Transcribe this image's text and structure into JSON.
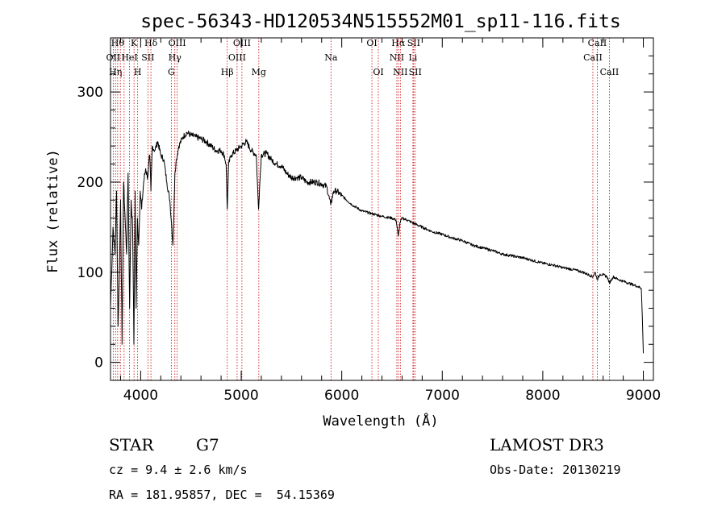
{
  "chart_data": {
    "type": "line",
    "title": "spec-56343-HD120534N515552M01_sp11-116.fits",
    "xlabel": "Wavelength (Å)",
    "ylabel": "Flux (relative)",
    "xlim": [
      3700,
      9100
    ],
    "ylim": [
      -20,
      360
    ],
    "x_ticks": [
      4000,
      5000,
      6000,
      7000,
      8000,
      9000
    ],
    "y_ticks": [
      0,
      100,
      200,
      300
    ],
    "series": [
      {
        "name": "spectrum",
        "x": [
          3700,
          3725,
          3745,
          3760,
          3775,
          3790,
          3800,
          3815,
          3830,
          3845,
          3860,
          3875,
          3890,
          3905,
          3920,
          3933,
          3945,
          3955,
          3968,
          3980,
          3995,
          4010,
          4030,
          4050,
          4070,
          4090,
          4102,
          4115,
          4140,
          4170,
          4200,
          4230,
          4260,
          4290,
          4310,
          4320,
          4330,
          4340,
          4355,
          4380,
          4420,
          4460,
          4500,
          4550,
          4600,
          4650,
          4700,
          4750,
          4800,
          4830,
          4850,
          4861,
          4875,
          4900,
          4950,
          5000,
          5050,
          5100,
          5150,
          5172,
          5183,
          5200,
          5250,
          5300,
          5350,
          5400,
          5450,
          5500,
          5550,
          5600,
          5650,
          5700,
          5750,
          5800,
          5850,
          5890,
          5920,
          5950,
          6000,
          6100,
          6200,
          6300,
          6400,
          6500,
          6540,
          6563,
          6580,
          6600,
          6650,
          6700,
          6800,
          6900,
          7000,
          7100,
          7200,
          7300,
          7400,
          7500,
          7600,
          7700,
          7800,
          7900,
          8000,
          8100,
          8200,
          8300,
          8400,
          8498,
          8520,
          8542,
          8570,
          8600,
          8640,
          8662,
          8700,
          8750,
          8800,
          8850,
          8900,
          8950,
          8980,
          8990,
          9000
        ],
        "y": [
          60,
          150,
          120,
          190,
          40,
          110,
          180,
          20,
          200,
          160,
          120,
          210,
          60,
          180,
          150,
          20,
          190,
          60,
          160,
          130,
          190,
          170,
          200,
          215,
          205,
          230,
          190,
          240,
          235,
          245,
          230,
          225,
          200,
          180,
          150,
          130,
          160,
          210,
          225,
          240,
          250,
          255,
          252,
          250,
          248,
          245,
          240,
          235,
          235,
          230,
          220,
          170,
          220,
          230,
          235,
          240,
          245,
          235,
          230,
          170,
          195,
          230,
          232,
          225,
          220,
          218,
          210,
          205,
          205,
          205,
          200,
          200,
          200,
          198,
          195,
          175,
          190,
          190,
          185,
          175,
          168,
          165,
          162,
          160,
          158,
          140,
          155,
          160,
          158,
          155,
          150,
          145,
          142,
          138,
          135,
          130,
          127,
          124,
          120,
          118,
          116,
          113,
          110,
          108,
          105,
          103,
          100,
          95,
          100,
          92,
          98,
          97,
          95,
          88,
          95,
          92,
          90,
          88,
          86,
          84,
          82,
          50,
          10
        ]
      }
    ],
    "line_markers": [
      {
        "name": "OII",
        "wl": 3727,
        "label": "OII",
        "row": 2
      },
      {
        "name": "H-eta",
        "wl": 3750,
        "label": "Hη",
        "row": 3
      },
      {
        "name": "H-theta",
        "wl": 3771,
        "label": "Hθ",
        "row": 1
      },
      {
        "name": "H-iota",
        "wl": 3798,
        "label": "",
        "row": 0
      },
      {
        "name": "OIII-1",
        "wl": 3835,
        "label": "",
        "row": 0
      },
      {
        "name": "HeI",
        "wl": 3889,
        "label": "HeI",
        "row": 2
      },
      {
        "name": "K",
        "wl": 3934,
        "label": "K",
        "row": 1
      },
      {
        "name": "H-epsilon",
        "wl": 3970,
        "label": "H",
        "row": 3
      },
      {
        "name": "SII-1",
        "wl": 4072,
        "label": "SII",
        "row": 2
      },
      {
        "name": "H-delta",
        "wl": 4102,
        "label": "Hδ",
        "row": 1
      },
      {
        "name": "G",
        "wl": 4305,
        "label": "G",
        "row": 3
      },
      {
        "name": "H-gamma",
        "wl": 4340,
        "label": "Hγ",
        "row": 2
      },
      {
        "name": "OIII-2",
        "wl": 4363,
        "label": "OIII",
        "row": 1
      },
      {
        "name": "H-beta",
        "wl": 4861,
        "label": "Hβ",
        "row": 3
      },
      {
        "name": "OIII-3",
        "wl": 4959,
        "label": "OIII",
        "row": 2
      },
      {
        "name": "OIII-4",
        "wl": 5007,
        "label": "OIII",
        "row": 1
      },
      {
        "name": "Mg",
        "wl": 5175,
        "label": "Mg",
        "row": 3
      },
      {
        "name": "Na",
        "wl": 5893,
        "label": "Na",
        "row": 2
      },
      {
        "name": "OI-1",
        "wl": 6300,
        "label": "OI",
        "row": 1
      },
      {
        "name": "OI-2",
        "wl": 6364,
        "label": "OI",
        "row": 3
      },
      {
        "name": "NII-1",
        "wl": 6548,
        "label": "NII",
        "row": 2
      },
      {
        "name": "H-alpha",
        "wl": 6563,
        "label": "Hα",
        "row": 1
      },
      {
        "name": "NII-2",
        "wl": 6583,
        "label": "NII",
        "row": 3
      },
      {
        "name": "Li",
        "wl": 6708,
        "label": "Li",
        "row": 2
      },
      {
        "name": "SII-2",
        "wl": 6716,
        "label": "SII",
        "row": 1
      },
      {
        "name": "SII-3",
        "wl": 6731,
        "label": "SII",
        "row": 3
      },
      {
        "name": "CaII-1",
        "wl": 8498,
        "label": "CaII",
        "row": 2
      },
      {
        "name": "CaII-2",
        "wl": 8542,
        "label": "CaII",
        "row": 1
      },
      {
        "name": "CaII-3",
        "wl": 8662,
        "label": "CaII",
        "row": 3
      }
    ],
    "colors": {
      "spectrum": "#000000",
      "marker": "#cc0000",
      "axes": "#000000"
    }
  },
  "info": {
    "class": "STAR",
    "subclass": "G7",
    "survey": "LAMOST DR3",
    "redshift": "cz = 9.4 ± 2.6 km/s",
    "obs_date": "Obs-Date: 20130219",
    "coords": "RA = 181.95857, DEC =  54.15369"
  }
}
